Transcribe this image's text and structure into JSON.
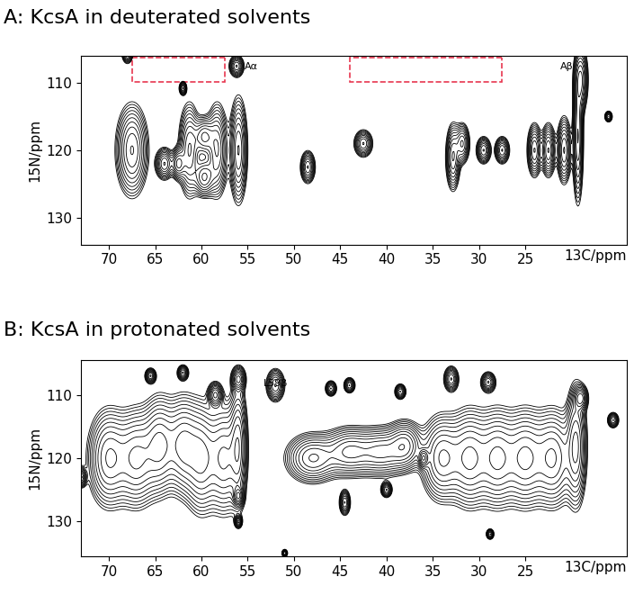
{
  "chart_data": [
    {
      "type": "contour",
      "title": "A: KcsA in deuterated solvents",
      "x_label": "13C/ppm",
      "y_label": "15N/ppm",
      "xlim": [
        73,
        14
      ],
      "ylim": [
        134,
        106
      ],
      "xticks": [
        70,
        65,
        60,
        55,
        50,
        45,
        40,
        35,
        30,
        25
      ],
      "yticks": [
        110,
        120,
        130
      ],
      "color": "#000000",
      "peaks": {
        "x": [
          67.5,
          64,
          62.5,
          61.3,
          59.7,
          59.7,
          58.3,
          56,
          68,
          62,
          56.2,
          48.5,
          42.5,
          32.8,
          31.8,
          29.5,
          27.5,
          24,
          22.5,
          20.8,
          19.3,
          19,
          16
        ],
        "y": [
          120,
          122,
          122,
          120,
          118,
          124,
          120,
          120,
          105.5,
          110.8,
          107.5,
          122.5,
          119,
          121,
          119,
          120,
          120,
          120,
          120,
          120,
          118,
          109.5,
          115
        ],
        "x_width": [
          0.9,
          0.5,
          0.4,
          0.6,
          0.6,
          0.6,
          0.6,
          0.5,
          0.3,
          0.2,
          0.4,
          0.4,
          0.5,
          0.4,
          0.4,
          0.4,
          0.4,
          0.4,
          0.4,
          0.4,
          0.3,
          0.4,
          0.2
        ],
        "y_width": [
          3.5,
          1.2,
          1.2,
          3.5,
          1.5,
          1.5,
          3.5,
          4,
          0.8,
          0.5,
          0.8,
          1.2,
          1,
          2.5,
          1.5,
          1,
          1,
          2,
          2,
          2.5,
          5,
          2.5,
          0.4
        ]
      },
      "annotations": [
        {
          "text": "Aα",
          "x": 55.3,
          "y": 107.6
        },
        {
          "text": "Aβ",
          "x": 21.2,
          "y": 107.6
        }
      ],
      "boxes": [
        {
          "x": [
            67.5,
            57.5
          ],
          "y": [
            106.2,
            109.8
          ],
          "color": "#e8364f",
          "line_style": "dashed"
        },
        {
          "x": [
            44,
            27.5
          ],
          "y": [
            106.2,
            109.8
          ],
          "color": "#e8364f",
          "line_style": "dashed"
        }
      ]
    },
    {
      "type": "contour",
      "title": "B: KcsA in protonated solvents",
      "x_label": "13C/ppm",
      "y_label": "15N/ppm",
      "xlim": [
        73,
        14
      ],
      "ylim": [
        135.5,
        104.5
      ],
      "xticks": [
        70,
        65,
        60,
        55,
        50,
        45,
        40,
        35,
        30,
        25
      ],
      "yticks": [
        110,
        120,
        130
      ],
      "color": "#000000",
      "peaks": {
        "x": [
          70,
          67,
          64.5,
          62,
          60,
          57.5,
          56,
          48,
          44,
          40.5,
          38,
          34,
          31,
          28,
          25,
          22,
          19.5,
          73,
          65.5,
          62,
          58.5,
          56,
          52,
          46,
          44,
          38.5,
          33,
          29,
          19,
          15.5,
          56,
          56,
          44.5,
          40,
          36,
          28.8,
          51
        ],
        "y": [
          120,
          120,
          118,
          118,
          120,
          120,
          118,
          120,
          119,
          119,
          118,
          120,
          120,
          120,
          120,
          120,
          118,
          123,
          107,
          106.5,
          110,
          107.5,
          108.5,
          109,
          108.5,
          109.5,
          107.5,
          108,
          110.5,
          114,
          126,
          130,
          127,
          125,
          120,
          132,
          135
        ],
        "x_width": [
          1.2,
          1.2,
          1,
          1,
          1,
          1,
          0.5,
          1.5,
          1.5,
          1.5,
          1,
          1.2,
          1.2,
          1.2,
          1.2,
          1.2,
          0.6,
          0.3,
          0.3,
          0.3,
          0.4,
          0.4,
          0.5,
          0.3,
          0.3,
          0.3,
          0.4,
          0.4,
          0.4,
          0.3,
          0.3,
          0.2,
          0.3,
          0.3,
          0.3,
          0.2,
          0.15
        ],
        "y_width": [
          4,
          4,
          4,
          4,
          4.5,
          4.5,
          5,
          2,
          2,
          2,
          2,
          3.5,
          4,
          4,
          4,
          4,
          5,
          0.8,
          0.6,
          0.6,
          1,
          1,
          1.3,
          0.6,
          0.6,
          0.6,
          1,
          0.8,
          1,
          0.6,
          0.8,
          0.5,
          1,
          0.6,
          0.8,
          0.4,
          0.3
        ]
      },
      "annotations": [
        {
          "text": "L59β",
          "x": 53.3,
          "y": 108.2
        }
      ],
      "boxes": []
    }
  ]
}
